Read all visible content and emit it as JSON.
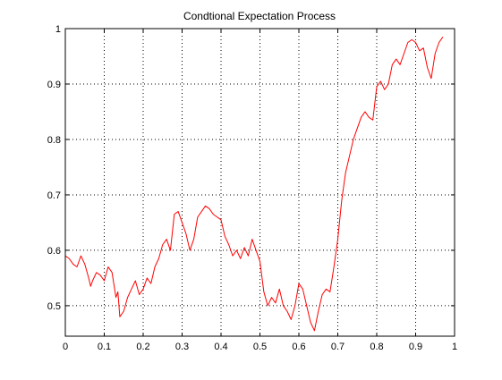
{
  "chart_data": {
    "type": "line",
    "title": "Condtional Expectation Process",
    "xlabel": "",
    "ylabel": "",
    "xlim": [
      0,
      1
    ],
    "ylim": [
      0.445,
      1.0
    ],
    "grid": true,
    "x_ticks": [
      "0",
      "0.1",
      "0.2",
      "0.3",
      "0.4",
      "0.5",
      "0.6",
      "0.7",
      "0.8",
      "0.9",
      "1"
    ],
    "y_ticks": [
      "0.5",
      "0.6",
      "0.7",
      "0.8",
      "0.9",
      "1"
    ],
    "colors": {
      "line": "#ff0000",
      "axes": "#000000",
      "grid": "#000000",
      "background": "#ffffff"
    },
    "series": [
      {
        "x": [
          0.0,
          0.01,
          0.02,
          0.03,
          0.04,
          0.05,
          0.06,
          0.065,
          0.07,
          0.08,
          0.09,
          0.1,
          0.11,
          0.12,
          0.13,
          0.135,
          0.14,
          0.15,
          0.16,
          0.17,
          0.18,
          0.19,
          0.2,
          0.21,
          0.22,
          0.23,
          0.24,
          0.25,
          0.26,
          0.27,
          0.28,
          0.29,
          0.3,
          0.31,
          0.32,
          0.33,
          0.34,
          0.35,
          0.36,
          0.37,
          0.38,
          0.39,
          0.4,
          0.41,
          0.42,
          0.43,
          0.44,
          0.45,
          0.46,
          0.47,
          0.48,
          0.49,
          0.5,
          0.51,
          0.52,
          0.53,
          0.54,
          0.55,
          0.56,
          0.57,
          0.58,
          0.59,
          0.6,
          0.61,
          0.62,
          0.63,
          0.64,
          0.65,
          0.66,
          0.67,
          0.68,
          0.69,
          0.7,
          0.71,
          0.72,
          0.73,
          0.74,
          0.75,
          0.76,
          0.77,
          0.78,
          0.79,
          0.8,
          0.81,
          0.82,
          0.83,
          0.84,
          0.85,
          0.86,
          0.87,
          0.88,
          0.89,
          0.9,
          0.91,
          0.92,
          0.93,
          0.94,
          0.95,
          0.96,
          0.97
        ],
        "y": [
          0.59,
          0.585,
          0.575,
          0.57,
          0.59,
          0.575,
          0.55,
          0.535,
          0.545,
          0.56,
          0.555,
          0.545,
          0.57,
          0.56,
          0.515,
          0.525,
          0.48,
          0.49,
          0.515,
          0.53,
          0.545,
          0.52,
          0.53,
          0.55,
          0.54,
          0.57,
          0.585,
          0.61,
          0.62,
          0.6,
          0.665,
          0.67,
          0.65,
          0.63,
          0.6,
          0.62,
          0.66,
          0.67,
          0.68,
          0.675,
          0.665,
          0.66,
          0.655,
          0.625,
          0.61,
          0.59,
          0.6,
          0.585,
          0.605,
          0.59,
          0.62,
          0.6,
          0.58,
          0.525,
          0.5,
          0.515,
          0.505,
          0.53,
          0.5,
          0.49,
          0.475,
          0.5,
          0.54,
          0.53,
          0.5,
          0.47,
          0.455,
          0.49,
          0.52,
          0.53,
          0.525,
          0.57,
          0.62,
          0.69,
          0.74,
          0.77,
          0.8,
          0.82,
          0.84,
          0.85,
          0.84,
          0.835,
          0.895,
          0.905,
          0.89,
          0.9,
          0.935,
          0.945,
          0.935,
          0.955,
          0.975,
          0.98,
          0.975,
          0.96,
          0.965,
          0.93,
          0.91,
          0.955,
          0.975,
          0.985
        ]
      }
    ]
  }
}
